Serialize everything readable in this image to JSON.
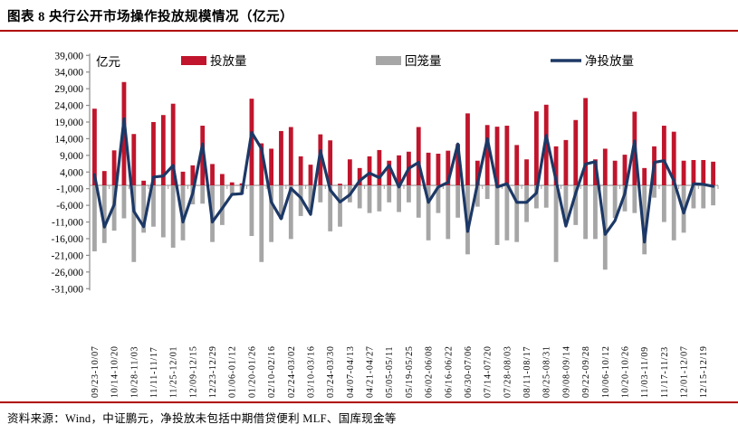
{
  "title": "图表 8 央行公开市场操作投放规模情况（亿元）",
  "source": "资料来源：Wind，中证鹏元，净投放未包括中期借贷便利 MLF、国库现金等",
  "colors": {
    "accent_rule": "#b00000",
    "injection": "#c0152c",
    "withdrawal": "#a6a6a6",
    "net_line": "#1c3866",
    "axis": "#8c8c8c"
  },
  "chart_data": {
    "type": "bar",
    "subtype": "bar+line combo, weekly",
    "unit_label": "亿元",
    "ylim": [
      -31000,
      39000
    ],
    "y_ticks": [
      39000,
      34000,
      29000,
      24000,
      19000,
      14000,
      9000,
      4000,
      -1000,
      -6000,
      -11000,
      -16000,
      -21000,
      -26000,
      -31000
    ],
    "grid": false,
    "legend_position": "top",
    "x_tick_labels": [
      "09/23-10/07",
      "10/14-10/20",
      "10/28-11/03",
      "11/11-11/17",
      "11/25-12/01",
      "12/09-12/15",
      "12/23-12/29",
      "01/06-01/12",
      "01/20-01/26",
      "02/10-02/16",
      "02/24-03/02",
      "03/10-03/16",
      "03/24-03/30",
      "04/07-04/13",
      "04/21-04/27",
      "05/05-05/11",
      "05/19-05/25",
      "06/02-06/08",
      "06/16-06/22",
      "06/30-07/06",
      "07/14-07/20",
      "07/28-08/03",
      "08/11-08/17",
      "08/25-08/31",
      "09/08-09/14",
      "09/22-09/28",
      "10/06-10/12",
      "10/20-10/26",
      "11/03-11/09",
      "11/17-11/23",
      "12/01-12/07",
      "12/15-12/19"
    ],
    "label_every_n_bars": 2,
    "series": [
      {
        "name": "投放量",
        "type": "bar",
        "color": "#c0152c",
        "values": [
          23000,
          4300,
          10500,
          31000,
          15400,
          1400,
          19000,
          21100,
          24500,
          4100,
          6000,
          17900,
          6400,
          3400,
          900,
          600,
          26000,
          12600,
          11000,
          16300,
          17500,
          8700,
          6200,
          15300,
          13500,
          500,
          7800,
          5200,
          8700,
          10600,
          7400,
          9000,
          10100,
          17500,
          9800,
          9500,
          10400,
          12400,
          21600,
          7400,
          18100,
          17600,
          17900,
          12100,
          7800,
          22200,
          24200,
          11700,
          13600,
          19600,
          26200,
          7800,
          11000,
          7400,
          9200,
          22100,
          5200,
          11700,
          17900,
          16100,
          7400,
          7600,
          7600,
          7100
        ]
      },
      {
        "name": "回笼量",
        "type": "bar",
        "color": "#a6a6a6",
        "values": [
          -19800,
          -17300,
          -13600,
          -9900,
          -23000,
          -14200,
          -12400,
          -15600,
          -18700,
          -16500,
          -5700,
          -5500,
          -17000,
          -11900,
          -2800,
          -2700,
          -15200,
          -23000,
          -17000,
          -10100,
          -16100,
          -9200,
          -7100,
          -5100,
          -13800,
          -12400,
          -5100,
          -6900,
          -8300,
          -7800,
          -5100,
          -8000,
          -5100,
          -9700,
          -16500,
          -8300,
          -16100,
          -9700,
          -20700,
          -6400,
          -4100,
          -17900,
          -16500,
          -17000,
          -11000,
          -6900,
          -6700,
          -23000,
          -11500,
          -11900,
          -16100,
          -16100,
          -25300,
          -9800,
          -7800,
          -8300,
          -20700,
          -3700,
          -11000,
          -16500,
          -14200,
          -6900,
          -6900,
          -6000
        ]
      },
      {
        "name": "净投放量",
        "type": "line",
        "color": "#1c3866",
        "values": [
          3200,
          -12500,
          -5800,
          20000,
          -7800,
          -12400,
          2500,
          2800,
          6000,
          -11000,
          -2300,
          12400,
          -11000,
          -6900,
          -2700,
          -2500,
          15900,
          11000,
          -5000,
          -10000,
          -900,
          -3700,
          -8700,
          10400,
          -1400,
          -5000,
          -2800,
          1400,
          3700,
          2300,
          6000,
          -500,
          5100,
          6900,
          -5100,
          -500,
          900,
          12400,
          -13800,
          500,
          14000,
          -500,
          500,
          -5100,
          -5100,
          -2300,
          15000,
          1400,
          -12200,
          -2300,
          6400,
          7100,
          -14700,
          -10600,
          -2500,
          13300,
          -17000,
          6900,
          7400,
          1400,
          -8300,
          500,
          300,
          -300
        ]
      }
    ]
  }
}
